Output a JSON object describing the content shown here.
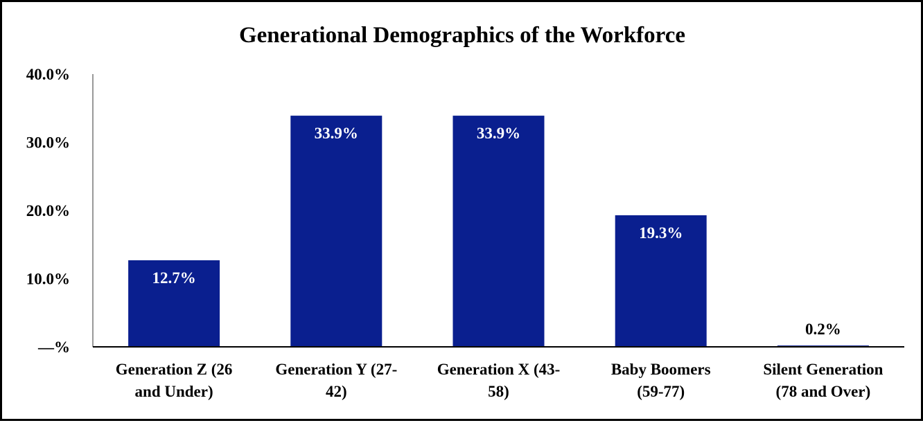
{
  "chart_data": {
    "type": "bar",
    "title": "Generational Demographics of the Workforce",
    "xlabel": "",
    "ylabel": "",
    "categories": [
      [
        "Generation Z (26",
        "and Under)"
      ],
      [
        "Generation Y (27-",
        "42)"
      ],
      [
        "Generation X (43-",
        "58)"
      ],
      [
        "Baby Boomers",
        "(59-77)"
      ],
      [
        "Silent Generation",
        "(78 and Over)"
      ]
    ],
    "values": [
      12.7,
      33.9,
      33.9,
      19.3,
      0.2
    ],
    "value_labels": [
      "12.7%",
      "33.9%",
      "33.9%",
      "19.3%",
      "0.2%"
    ],
    "ylim": [
      0,
      40
    ],
    "yticks": [
      0,
      10,
      20,
      30,
      40
    ],
    "ytick_labels": [
      "—%",
      "10.0%",
      "20.0%",
      "30.0%",
      "40.0%"
    ],
    "grid": false,
    "legend": "none",
    "colors": {
      "bar": "#0a1f8f",
      "label_inside": "#ffffff",
      "label_outside": "#000000",
      "axis": "#000000",
      "y_axis_line": "#999999",
      "frame": "#000000"
    }
  }
}
